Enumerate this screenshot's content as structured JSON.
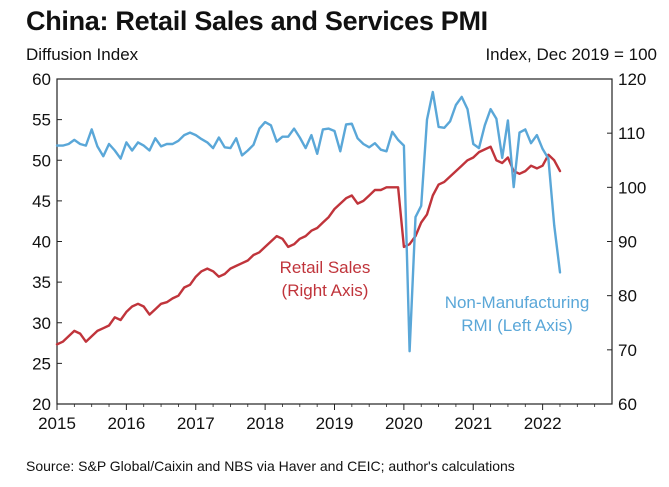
{
  "title": "China: Retail Sales and Services PMI",
  "left_axis_title": "Diffusion Index",
  "right_axis_title": "Index, Dec 2019 = 100",
  "source": "Source: S&P Global/Caixin and NBS via Haver and CEIC; author's calculations",
  "colors": {
    "retail": "#c0343b",
    "pmi": "#5aa7d8",
    "frame": "#222222"
  },
  "chart_data": {
    "type": "line",
    "x_ticks": [
      "2015",
      "2016",
      "2017",
      "2018",
      "2019",
      "2020",
      "2021",
      "2022"
    ],
    "x_range": [
      2015.0,
      2023.0
    ],
    "y_left": {
      "label": "Diffusion Index",
      "range": [
        20,
        60
      ],
      "ticks": [
        60,
        55,
        50,
        45,
        40,
        35,
        30,
        25,
        20
      ]
    },
    "y_right": {
      "label": "Index, Dec 2019 = 100",
      "range": [
        60,
        120
      ],
      "ticks": [
        120,
        110,
        100,
        90,
        80,
        70,
        60
      ]
    },
    "grid": false,
    "series": [
      {
        "name": "Retail Sales (Right Axis)",
        "axis": "right",
        "color": "#c0343b",
        "x": [
          2015.0,
          2015.083,
          2015.167,
          2015.25,
          2015.333,
          2015.417,
          2015.5,
          2015.583,
          2015.667,
          2015.75,
          2015.833,
          2015.917,
          2016.0,
          2016.083,
          2016.167,
          2016.25,
          2016.333,
          2016.417,
          2016.5,
          2016.583,
          2016.667,
          2016.75,
          2016.833,
          2016.917,
          2017.0,
          2017.083,
          2017.167,
          2017.25,
          2017.333,
          2017.417,
          2017.5,
          2017.583,
          2017.667,
          2017.75,
          2017.833,
          2017.917,
          2018.0,
          2018.083,
          2018.167,
          2018.25,
          2018.333,
          2018.417,
          2018.5,
          2018.583,
          2018.667,
          2018.75,
          2018.833,
          2018.917,
          2019.0,
          2019.083,
          2019.167,
          2019.25,
          2019.333,
          2019.417,
          2019.5,
          2019.583,
          2019.667,
          2019.75,
          2019.833,
          2019.917,
          2020.0,
          2020.083,
          2020.167,
          2020.25,
          2020.333,
          2020.417,
          2020.5,
          2020.583,
          2020.667,
          2020.75,
          2020.833,
          2020.917,
          2021.0,
          2021.083,
          2021.167,
          2021.25,
          2021.333,
          2021.417,
          2021.5,
          2021.583,
          2021.667,
          2021.75,
          2021.833,
          2021.917,
          2022.0,
          2022.083,
          2022.167,
          2022.25
        ],
        "values": [
          71.0,
          71.5,
          72.5,
          73.5,
          73.0,
          71.5,
          72.5,
          73.5,
          74.0,
          74.5,
          76.0,
          75.5,
          77.0,
          78.0,
          78.5,
          78.0,
          76.5,
          77.5,
          78.5,
          78.8,
          79.5,
          80.0,
          81.5,
          82.0,
          83.5,
          84.5,
          85.0,
          84.5,
          83.5,
          84.0,
          85.0,
          85.5,
          86.0,
          86.5,
          87.5,
          88.0,
          89.0,
          90.0,
          91.0,
          90.5,
          89.0,
          89.5,
          90.5,
          91.0,
          92.0,
          92.5,
          93.5,
          94.5,
          96.0,
          97.0,
          98.0,
          98.5,
          97.0,
          97.5,
          98.5,
          99.5,
          99.5,
          100.0,
          100.0,
          100.0,
          89.0,
          89.5,
          91.0,
          93.5,
          95.0,
          98.5,
          100.5,
          101.0,
          102.0,
          103.0,
          104.0,
          105.0,
          105.5,
          106.5,
          107.0,
          107.5,
          105.0,
          104.5,
          105.5,
          103.0,
          102.5,
          103.0,
          104.0,
          103.5,
          104.0,
          106.0,
          105.0,
          103.0
        ]
      },
      {
        "name": "Non-Manufacturing RMI (Left Axis)",
        "axis": "left",
        "color": "#5aa7d8",
        "x": [
          2015.0,
          2015.083,
          2015.167,
          2015.25,
          2015.333,
          2015.417,
          2015.5,
          2015.583,
          2015.667,
          2015.75,
          2015.833,
          2015.917,
          2016.0,
          2016.083,
          2016.167,
          2016.25,
          2016.333,
          2016.417,
          2016.5,
          2016.583,
          2016.667,
          2016.75,
          2016.833,
          2016.917,
          2017.0,
          2017.083,
          2017.167,
          2017.25,
          2017.333,
          2017.417,
          2017.5,
          2017.583,
          2017.667,
          2017.75,
          2017.833,
          2017.917,
          2018.0,
          2018.083,
          2018.167,
          2018.25,
          2018.333,
          2018.417,
          2018.5,
          2018.583,
          2018.667,
          2018.75,
          2018.833,
          2018.917,
          2019.0,
          2019.083,
          2019.167,
          2019.25,
          2019.333,
          2019.417,
          2019.5,
          2019.583,
          2019.667,
          2019.75,
          2019.833,
          2019.917,
          2020.0,
          2020.083,
          2020.167,
          2020.25,
          2020.333,
          2020.417,
          2020.5,
          2020.583,
          2020.667,
          2020.75,
          2020.833,
          2020.917,
          2021.0,
          2021.083,
          2021.167,
          2021.25,
          2021.333,
          2021.417,
          2021.5,
          2021.583,
          2021.667,
          2021.75,
          2021.833,
          2021.917,
          2022.0,
          2022.083,
          2022.167,
          2022.25
        ],
        "values": [
          51.8,
          51.8,
          52.0,
          52.5,
          52.0,
          51.8,
          53.8,
          51.7,
          50.5,
          52.0,
          51.2,
          50.2,
          52.2,
          51.2,
          52.2,
          51.8,
          51.2,
          52.7,
          51.7,
          52.0,
          52.0,
          52.4,
          53.1,
          53.4,
          53.1,
          52.6,
          52.2,
          51.5,
          52.8,
          51.6,
          51.5,
          52.7,
          50.6,
          51.2,
          51.9,
          53.9,
          54.7,
          54.3,
          52.3,
          52.9,
          52.9,
          53.9,
          52.8,
          51.5,
          53.1,
          50.8,
          53.8,
          53.9,
          53.6,
          51.1,
          54.4,
          54.5,
          52.7,
          52.0,
          51.6,
          52.1,
          51.3,
          51.1,
          53.5,
          52.5,
          51.8,
          26.5,
          43.0,
          44.4,
          55.0,
          58.4,
          54.1,
          54.0,
          54.8,
          56.8,
          57.8,
          56.3,
          52.0,
          51.5,
          54.3,
          56.3,
          55.1,
          50.3,
          54.9,
          46.7,
          53.4,
          53.8,
          52.1,
          53.1,
          51.4,
          50.2,
          42.0,
          36.2
        ]
      }
    ],
    "annotations": [
      {
        "text": "Retail Sales",
        "series": "Retail Sales (Right Axis)"
      },
      {
        "text": "(Right Axis)",
        "series": "Retail Sales (Right Axis)"
      },
      {
        "text": "Non-Manufacturing",
        "series": "Non-Manufacturing RMI (Left Axis)"
      },
      {
        "text": "RMI (Left Axis)",
        "series": "Non-Manufacturing RMI (Left Axis)"
      }
    ]
  }
}
